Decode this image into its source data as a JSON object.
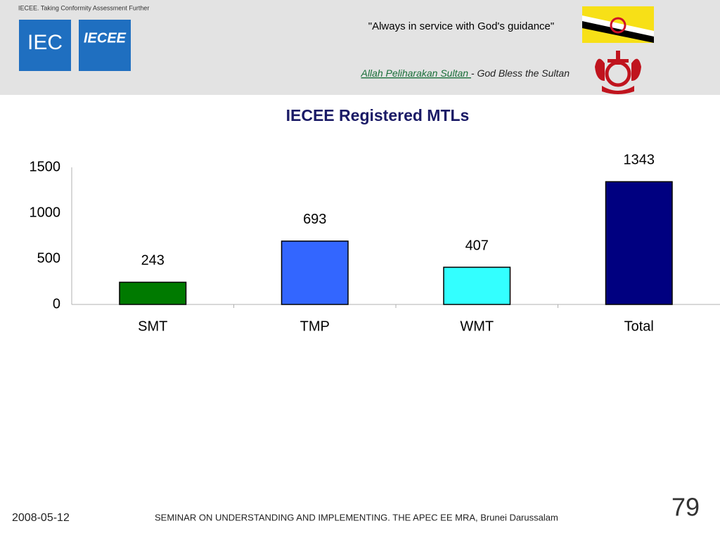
{
  "header": {
    "tagline": "IECEE. Taking Conformity Assessment Further",
    "logo_left": "IEC",
    "logo_right": "IECEE",
    "motto": "\"Always in service with God's guidance\"",
    "anthem_name": "Allah Peliharakan Sultan ",
    "anthem_translation": "- God Bless the Sultan"
  },
  "chart_data": {
    "type": "bar",
    "title": "IECEE Registered MTLs",
    "categories": [
      "SMT",
      "TMP",
      "WMT",
      "Total"
    ],
    "values": [
      243,
      693,
      407,
      1343
    ],
    "colors": [
      "#007a00",
      "#3366ff",
      "#33ffff",
      "#000080"
    ],
    "ylim": [
      0,
      1500
    ],
    "yticks": [
      0,
      500,
      1000,
      1500
    ],
    "grid": false
  },
  "footer": {
    "date": "2008-05-12",
    "seminar": "SEMINAR ON UNDERSTANDING AND IMPLEMENTING. THE APEC EE MRA, Brunei Darussalam",
    "page": "79"
  }
}
